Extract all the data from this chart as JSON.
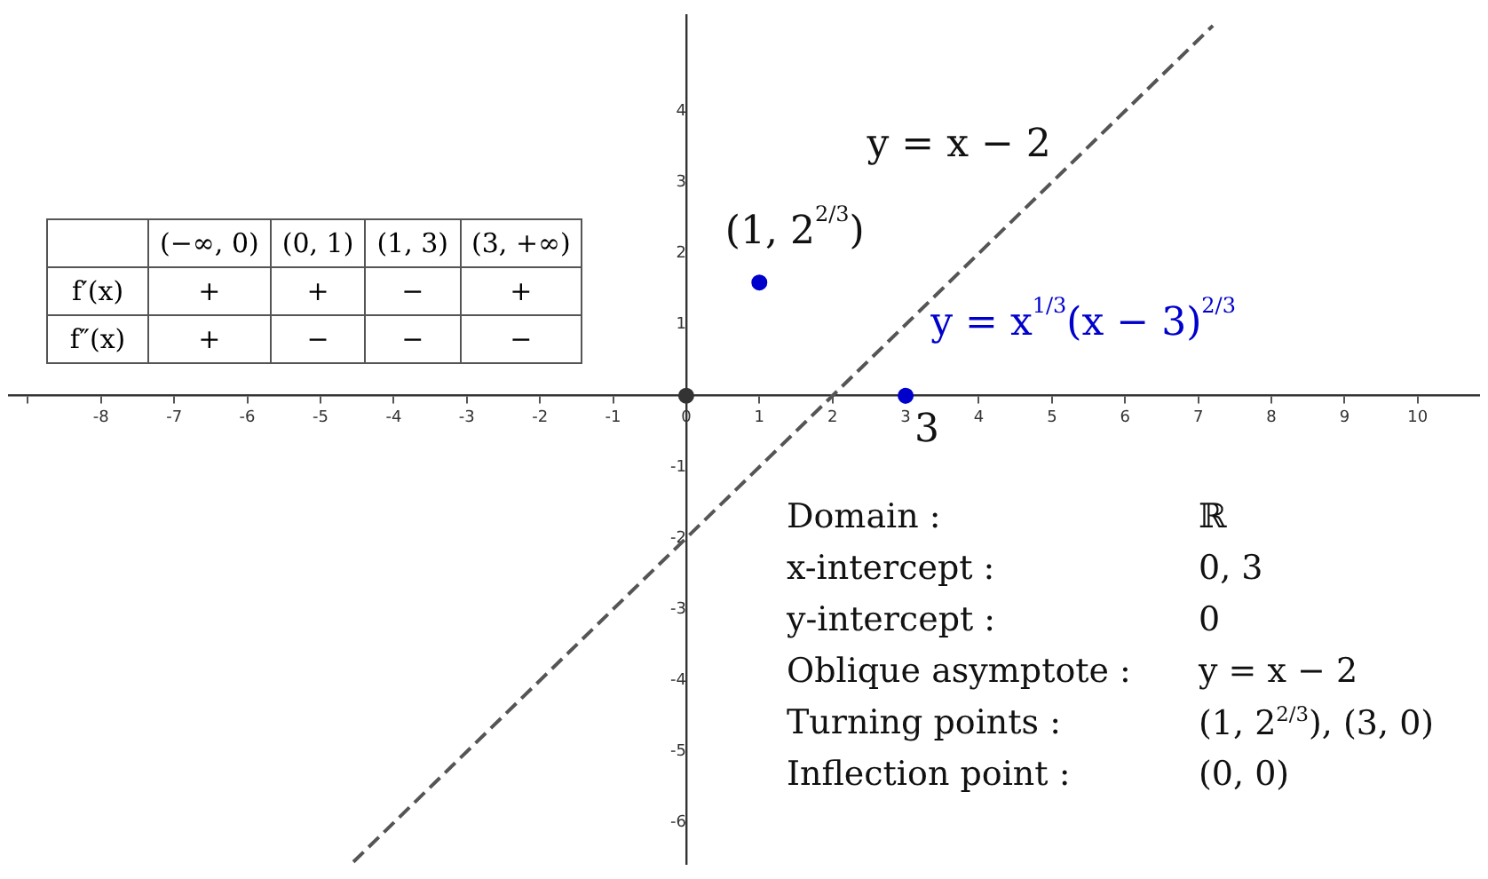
{
  "chart_data": {
    "type": "scatter",
    "xlim": [
      -9.26,
      10.84
    ],
    "ylim": [
      -6.58,
      5.35
    ],
    "xticks": [
      {
        "value": -9,
        "label": null
      },
      -8,
      -7,
      -6,
      -5,
      -4,
      -3,
      -2,
      -1,
      0,
      1,
      2,
      3,
      4,
      5,
      6,
      7,
      8,
      9,
      10
    ],
    "yticks": [
      -6,
      -5,
      -4,
      -3,
      -2,
      -1,
      1,
      2,
      3,
      4
    ],
    "grid": false,
    "legend": false,
    "series": [
      {
        "type": "line",
        "name": "y = x − 2",
        "color": "#555555",
        "line_style": "dashed",
        "x": [
          -4.55,
          7.2
        ],
        "values": [
          -6.55,
          5.2
        ]
      },
      {
        "type": "scatter",
        "name": "y = x$^{1/3}$(x − 3)$^{2/3}$",
        "color": "#0000cc",
        "marker": "circle",
        "x": [
          1,
          3
        ],
        "values": [
          1.59,
          0
        ],
        "value_labels": [
          "(1, 2$^{2/3}$)",
          null
        ]
      },
      {
        "type": "scatter",
        "color": "#333333",
        "marker": "circle",
        "x": [
          0
        ],
        "values": [
          0
        ]
      }
    ],
    "annotations": [
      {
        "text": "3",
        "x": 3,
        "y": 0
      },
      "(−∞, 0)",
      "(0, 1)",
      "(1, 3)",
      "(3, +∞)",
      "f′(x)",
      "+",
      "+",
      "−",
      "+",
      "f″(x)",
      "+",
      "−",
      "−",
      "−",
      "Domain :",
      "ℝ",
      "x-intercept :",
      "0, 3",
      "y-intercept :",
      "0",
      "Oblique asymptote :",
      "y = x − 2",
      "Turning points :",
      "(1, 2$^{2/3}$), (3, 0)",
      "Inflection point :",
      "(0, 0)"
    ]
  }
}
